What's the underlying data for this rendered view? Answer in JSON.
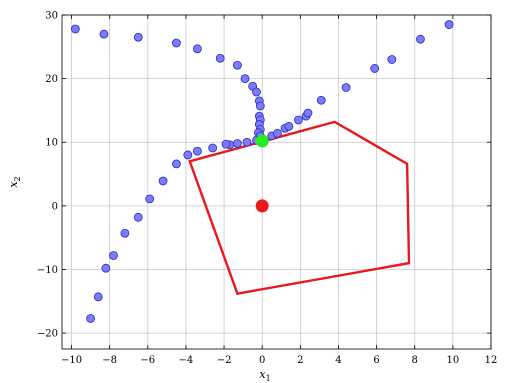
{
  "chart_data": {
    "type": "scatter",
    "title": "",
    "xlabel": "x",
    "xlabel_sub": "1",
    "ylabel": "x",
    "ylabel_sub": "2",
    "xlim": [
      -10.5,
      12
    ],
    "ylim": [
      -22.5,
      30
    ],
    "xticks": [
      -10,
      -8,
      -6,
      -4,
      -2,
      0,
      2,
      4,
      6,
      8,
      10,
      12
    ],
    "yticks": [
      -20,
      -10,
      0,
      10,
      20,
      30
    ],
    "xtick_labels": [
      "−10",
      "−8",
      "−6",
      "−4",
      "−2",
      "0",
      "2",
      "4",
      "6",
      "8",
      "10",
      "12"
    ],
    "ytick_labels": [
      "−20",
      "−10",
      "0",
      "10",
      "20",
      "30"
    ],
    "grid": true,
    "colors": {
      "points_fill": "#7b7bff",
      "points_stroke": "#2b2bb0",
      "polygon": "#e8181c",
      "center": "#e8181c",
      "highlight": "#22ee22",
      "grid": "#c8c8c8"
    },
    "series": [
      {
        "kind": "points",
        "values": [
          [
            -9.8,
            27.8
          ],
          [
            -8.3,
            27.0
          ],
          [
            -6.5,
            26.5
          ],
          [
            -4.5,
            25.6
          ],
          [
            -3.4,
            24.7
          ],
          [
            -2.2,
            23.2
          ],
          [
            -1.3,
            22.1
          ],
          [
            -0.9,
            20.0
          ],
          [
            -0.5,
            18.8
          ],
          [
            -0.3,
            17.9
          ],
          [
            -0.15,
            16.5
          ],
          [
            -0.1,
            15.7
          ],
          [
            -0.15,
            14.1
          ],
          [
            -0.1,
            13.5
          ],
          [
            -0.15,
            12.8
          ],
          [
            -0.1,
            12.0
          ],
          [
            -0.2,
            11.5
          ],
          [
            -0.1,
            11.0
          ],
          [
            -0.3,
            10.3
          ],
          [
            0.5,
            11.0
          ],
          [
            0.8,
            11.4
          ],
          [
            1.2,
            12.2
          ],
          [
            1.4,
            12.5
          ],
          [
            1.9,
            13.5
          ],
          [
            2.3,
            14.1
          ],
          [
            2.4,
            14.6
          ],
          [
            3.1,
            16.6
          ],
          [
            4.4,
            18.6
          ],
          [
            5.9,
            21.6
          ],
          [
            6.8,
            23.0
          ],
          [
            8.3,
            26.2
          ],
          [
            9.8,
            28.5
          ],
          [
            -0.8,
            10.0
          ],
          [
            -1.3,
            9.8
          ],
          [
            -1.7,
            9.6
          ],
          [
            -1.9,
            9.7
          ],
          [
            -2.6,
            9.1
          ],
          [
            -3.4,
            8.6
          ],
          [
            -3.9,
            8.0
          ],
          [
            -4.5,
            6.6
          ],
          [
            -5.2,
            3.9
          ],
          [
            -5.9,
            1.1
          ],
          [
            -6.5,
            -1.8
          ],
          [
            -7.2,
            -4.3
          ],
          [
            -7.8,
            -7.8
          ],
          [
            -8.2,
            -9.8
          ],
          [
            -8.6,
            -14.3
          ],
          [
            -9.0,
            -17.7
          ]
        ]
      },
      {
        "kind": "polygon",
        "values": [
          [
            -3.8,
            7.0
          ],
          [
            3.8,
            13.2
          ],
          [
            7.6,
            6.6
          ],
          [
            7.7,
            -9.0
          ],
          [
            -1.3,
            -13.8
          ]
        ]
      },
      {
        "kind": "center",
        "values": [
          [
            0,
            0
          ]
        ]
      },
      {
        "kind": "highlight",
        "values": [
          [
            0,
            10.2
          ]
        ]
      }
    ]
  }
}
